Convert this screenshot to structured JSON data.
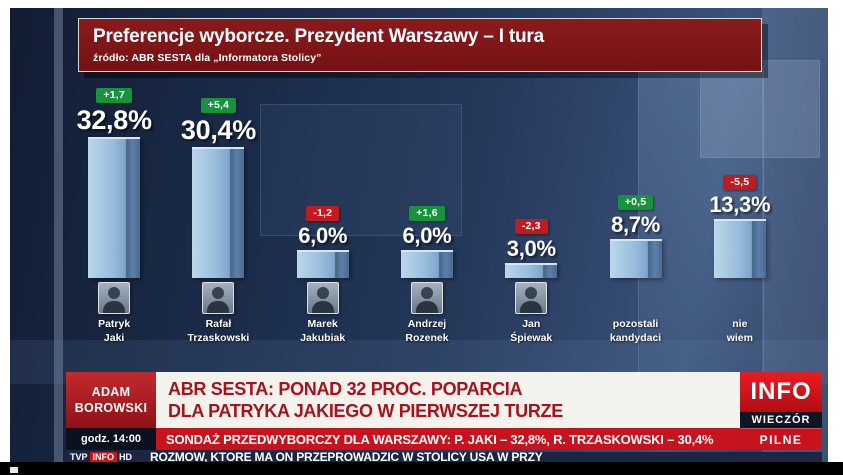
{
  "header": {
    "title": "Preferencje wyborcze. Prezydent Warszawy – I tura",
    "source": "źródło: ABR SESTA dla „Informatora Stolicy”"
  },
  "chart_data": {
    "type": "bar",
    "title": "Preferencje wyborcze. Prezydent Warszawy – I tura",
    "source": "źródło: ABR SESTA dla „Informatora Stolicy”",
    "unit": "%",
    "ylim": [
      0,
      35
    ],
    "categories": [
      "Patryk Jaki",
      "Rafał Trzaskowski",
      "Marek Jakubiak",
      "Andrzej Rozenek",
      "Jan Śpiewak",
      "pozostali kandydaci",
      "nie wiem"
    ],
    "values": [
      32.8,
      30.4,
      6.0,
      6.0,
      3.0,
      8.7,
      13.3
    ],
    "changes": [
      1.7,
      5.4,
      -1.2,
      1.6,
      -2.3,
      0.5,
      -5.5
    ],
    "bar_color": "#97bcdc",
    "gain_color": "#17923d",
    "loss_color": "#c11b22",
    "candidates": [
      {
        "name_line1": "Patryk",
        "name_line2": "Jaki",
        "value": 32.8,
        "value_label": "32,8%",
        "change_label": "+1,7",
        "direction": "up",
        "photo": true
      },
      {
        "name_line1": "Rafał",
        "name_line2": "Trzaskowski",
        "value": 30.4,
        "value_label": "30,4%",
        "change_label": "+5,4",
        "direction": "up",
        "photo": true
      },
      {
        "name_line1": "Marek",
        "name_line2": "Jakubiak",
        "value": 6.0,
        "value_label": "6,0%",
        "change_label": "-1,2",
        "direction": "down",
        "photo": true
      },
      {
        "name_line1": "Andrzej",
        "name_line2": "Rozenek",
        "value": 6.0,
        "value_label": "6,0%",
        "change_label": "+1,6",
        "direction": "up",
        "photo": true
      },
      {
        "name_line1": "Jan",
        "name_line2": "Śpiewak",
        "value": 3.0,
        "value_label": "3,0%",
        "change_label": "-2,3",
        "direction": "down",
        "photo": true
      },
      {
        "name_line1": "pozostali",
        "name_line2": "kandydaci",
        "value": 8.7,
        "value_label": "8,7%",
        "change_label": "+0,5",
        "direction": "up",
        "photo": false
      },
      {
        "name_line1": "nie",
        "name_line2": "wiem",
        "value": 13.3,
        "value_label": "13,3%",
        "change_label": "-5,5",
        "direction": "down",
        "photo": false
      }
    ]
  },
  "lower_third": {
    "reporter_line1": "ADAM",
    "reporter_line2": "BOROWSKI",
    "time_label": "godz. 14:00",
    "headline_line1": "ABR SESTA: PONAD 32 PROC. POPARCIA",
    "headline_line2": "DLA PATRYKA JAKIEGO W PIERWSZEJ TURZE",
    "ticker": "SONDAŻ PRZEDWYBORCZY DLA WARSZAWY: P. JAKI – 32,8%, R. TRZASKOWSKI – 30,4%",
    "channel_logo": "INFO",
    "program_name": "WIECZÓR",
    "urgent_label": "PILNE",
    "bottom_ticker": "ROZMÓW, KTÓRE MA ON PRZEPROWADZIĆ W STOLICY USA W PRZY",
    "corner_logo": {
      "tvp": "TVP",
      "info": "INFO",
      "hd": "HD"
    }
  },
  "colors": {
    "background": "#1b2c4a",
    "title_box": "#7c1417",
    "headline_text": "#a6131f",
    "ticker_bg": "#c8121e",
    "brand_red": "#d01318"
  }
}
